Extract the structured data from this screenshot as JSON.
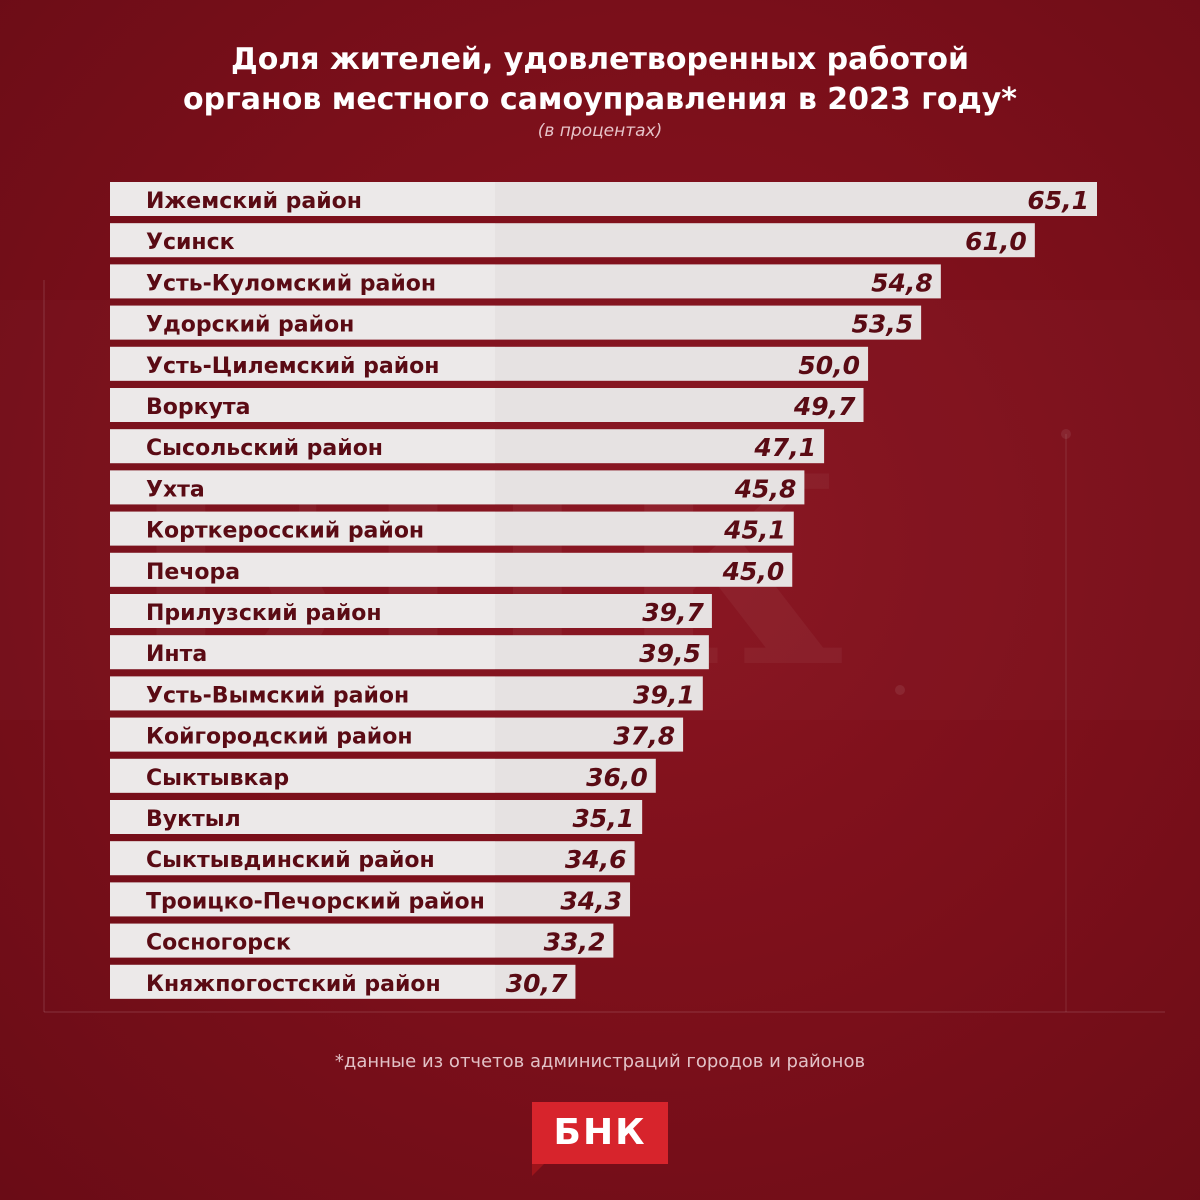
{
  "title_line_1": "Доля жителей, удовлетворенных работой",
  "title_line_2": "органов местного самоуправления в 2023 году*",
  "subtitle": "(в процентах)",
  "footnote": "*данные из отчетов администраций городов и районов",
  "logo_text": "БНК",
  "watermark_text": "БНК",
  "colors": {
    "background": "#7a0f1a",
    "bar_fill": "#e6e2e2",
    "bar_highlight": "#ffffff",
    "label_text": "#5a0b14",
    "value_text": "#5a0b14",
    "logo": "#d7242c"
  },
  "chart_data": {
    "type": "bar",
    "orientation": "horizontal",
    "title": "Доля жителей, удовлетворенных работой органов местного самоуправления в 2023 году*",
    "subtitle": "(в процентах)",
    "xlim": [
      0,
      65.1
    ],
    "categories": [
      "Ижемский район",
      "Усинск",
      "Усть-Куломский район",
      "Удорский район",
      "Усть-Цилемский район",
      "Воркута",
      "Сысольский район",
      "Ухта",
      "Корткеросский район",
      "Печора",
      "Прилузский район",
      "Инта",
      "Усть-Вымский район",
      "Койгородский район",
      "Сыктывкар",
      "Вуктыл",
      "Сыктывдинский район",
      "Троицко-Печорский район",
      "Сосногорск",
      "Княжпогостский район"
    ],
    "values": [
      65.1,
      61.0,
      54.8,
      53.5,
      50.0,
      49.7,
      47.1,
      45.8,
      45.1,
      45.0,
      39.7,
      39.5,
      39.1,
      37.8,
      36.0,
      35.1,
      34.6,
      34.3,
      33.2,
      30.7
    ],
    "value_labels": [
      "65,1",
      "61,0",
      "54,8",
      "53,5",
      "50,0",
      "49,7",
      "47,1",
      "45,8",
      "45,1",
      "45,0",
      "39,7",
      "39,5",
      "39,1",
      "37,8",
      "36,0",
      "35,1",
      "34,6",
      "34,3",
      "33,2",
      "30,7"
    ]
  }
}
